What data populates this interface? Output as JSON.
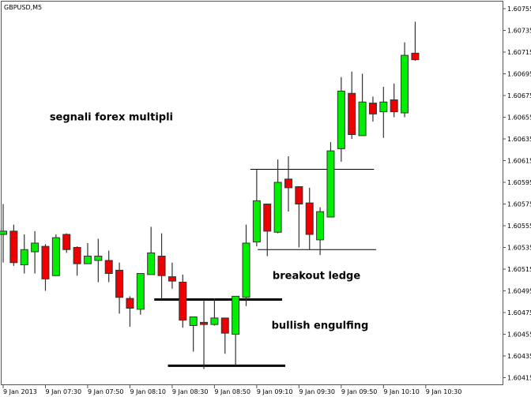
{
  "window": {
    "title": "GBPUSD,M5"
  },
  "chart_data": {
    "type": "candlestick",
    "title": "GBPUSD,M5",
    "colors": {
      "bull": "#00ee00",
      "bear": "#ee0000",
      "outline": "#000000",
      "background": "#ffffff"
    },
    "ylim": [
      1.60405,
      1.60765
    ],
    "y_ticks": [
      "1.60755",
      "1.60735",
      "1.60715",
      "1.60695",
      "1.60675",
      "1.60655",
      "1.60635",
      "1.60615",
      "1.60595",
      "1.60575",
      "1.60555",
      "1.60535",
      "1.60515",
      "1.60495",
      "1.60475",
      "1.60455",
      "1.60435",
      "1.60415"
    ],
    "x_ticks": [
      {
        "label": "9 Jan 2013",
        "candle": 0
      },
      {
        "label": "9 Jan 07:30",
        "candle": 4
      },
      {
        "label": "9 Jan 07:50",
        "candle": 8
      },
      {
        "label": "9 Jan 08:10",
        "candle": 12
      },
      {
        "label": "9 Jan 08:30",
        "candle": 16
      },
      {
        "label": "9 Jan 08:50",
        "candle": 20
      },
      {
        "label": "9 Jan 09:10",
        "candle": 24
      },
      {
        "label": "9 Jan 09:30",
        "candle": 28
      },
      {
        "label": "9 Jan 09:50",
        "candle": 32
      },
      {
        "label": "9 Jan 10:10",
        "candle": 36
      },
      {
        "label": "9 Jan 10:30",
        "candle": 40
      }
    ],
    "candles": [
      [
        1.60547,
        1.60575,
        1.60521,
        1.6055
      ],
      [
        1.6055,
        1.60556,
        1.60518,
        1.60521
      ],
      [
        1.60519,
        1.60547,
        1.60511,
        1.60533
      ],
      [
        1.60531,
        1.6055,
        1.60511,
        1.60539
      ],
      [
        1.60536,
        1.60538,
        1.60495,
        1.60506
      ],
      [
        1.60509,
        1.60547,
        1.60509,
        1.60544
      ],
      [
        1.60547,
        1.60548,
        1.6053,
        1.60533
      ],
      [
        1.60535,
        1.60536,
        1.60509,
        1.6052
      ],
      [
        1.6052,
        1.60539,
        1.6052,
        1.60527
      ],
      [
        1.60523,
        1.60543,
        1.60503,
        1.60527
      ],
      [
        1.60523,
        1.60532,
        1.60503,
        1.60511
      ],
      [
        1.60514,
        1.60521,
        1.60474,
        1.60489
      ],
      [
        1.60488,
        1.6049,
        1.60462,
        1.60479
      ],
      [
        1.60478,
        1.60511,
        1.60473,
        1.60511
      ],
      [
        1.6051,
        1.60554,
        1.6051,
        1.6053
      ],
      [
        1.60527,
        1.60548,
        1.60487,
        1.60509
      ],
      [
        1.60508,
        1.60521,
        1.60497,
        1.60504
      ],
      [
        1.60503,
        1.6051,
        1.60461,
        1.60468
      ],
      [
        1.60463,
        1.60471,
        1.60439,
        1.60471
      ],
      [
        1.60466,
        1.60487,
        1.60423,
        1.60464
      ],
      [
        1.60464,
        1.60488,
        1.60463,
        1.6047
      ],
      [
        1.6047,
        1.6047,
        1.60437,
        1.60456
      ],
      [
        1.60455,
        1.6049,
        1.60426,
        1.6049
      ],
      [
        1.60489,
        1.60556,
        1.60481,
        1.60539
      ],
      [
        1.6054,
        1.60607,
        1.60536,
        1.60578
      ],
      [
        1.60575,
        1.60575,
        1.60527,
        1.6055
      ],
      [
        1.60549,
        1.60616,
        1.60548,
        1.60595
      ],
      [
        1.60598,
        1.60619,
        1.60568,
        1.6059
      ],
      [
        1.60591,
        1.60591,
        1.60535,
        1.60575
      ],
      [
        1.60576,
        1.6059,
        1.60533,
        1.60547
      ],
      [
        1.60542,
        1.60572,
        1.60528,
        1.60568
      ],
      [
        1.60563,
        1.60632,
        1.60563,
        1.60624
      ],
      [
        1.60626,
        1.60692,
        1.60614,
        1.60679
      ],
      [
        1.60677,
        1.60697,
        1.60635,
        1.60639
      ],
      [
        1.60638,
        1.60695,
        1.60638,
        1.60669
      ],
      [
        1.60668,
        1.60674,
        1.60651,
        1.60658
      ],
      [
        1.6066,
        1.60683,
        1.60636,
        1.60669
      ],
      [
        1.60671,
        1.60686,
        1.60655,
        1.6066
      ],
      [
        1.60659,
        1.60724,
        1.60655,
        1.60712
      ],
      [
        1.60714,
        1.60743,
        1.60707,
        1.60708
      ]
    ],
    "candle_fields": [
      "open",
      "high",
      "low",
      "close"
    ],
    "hlines": [
      {
        "price": 1.60607,
        "from": 23.4,
        "to": 35.1,
        "weight": "thin"
      },
      {
        "price": 1.60533,
        "from": 24.1,
        "to": 35.3,
        "weight": "thin"
      },
      {
        "price": 1.60487,
        "from": 14.3,
        "to": 26.4,
        "weight": "thick"
      },
      {
        "price": 1.60426,
        "from": 15.6,
        "to": 26.7,
        "weight": "thick"
      }
    ],
    "annotations": [
      {
        "text": "segnali forex multipli",
        "candle": 4.4,
        "price": 1.60652
      },
      {
        "text": "breakout ledge",
        "candle": 25.5,
        "price": 1.60506
      },
      {
        "text": "bullish engulfing",
        "candle": 25.4,
        "price": 1.6046
      }
    ]
  }
}
